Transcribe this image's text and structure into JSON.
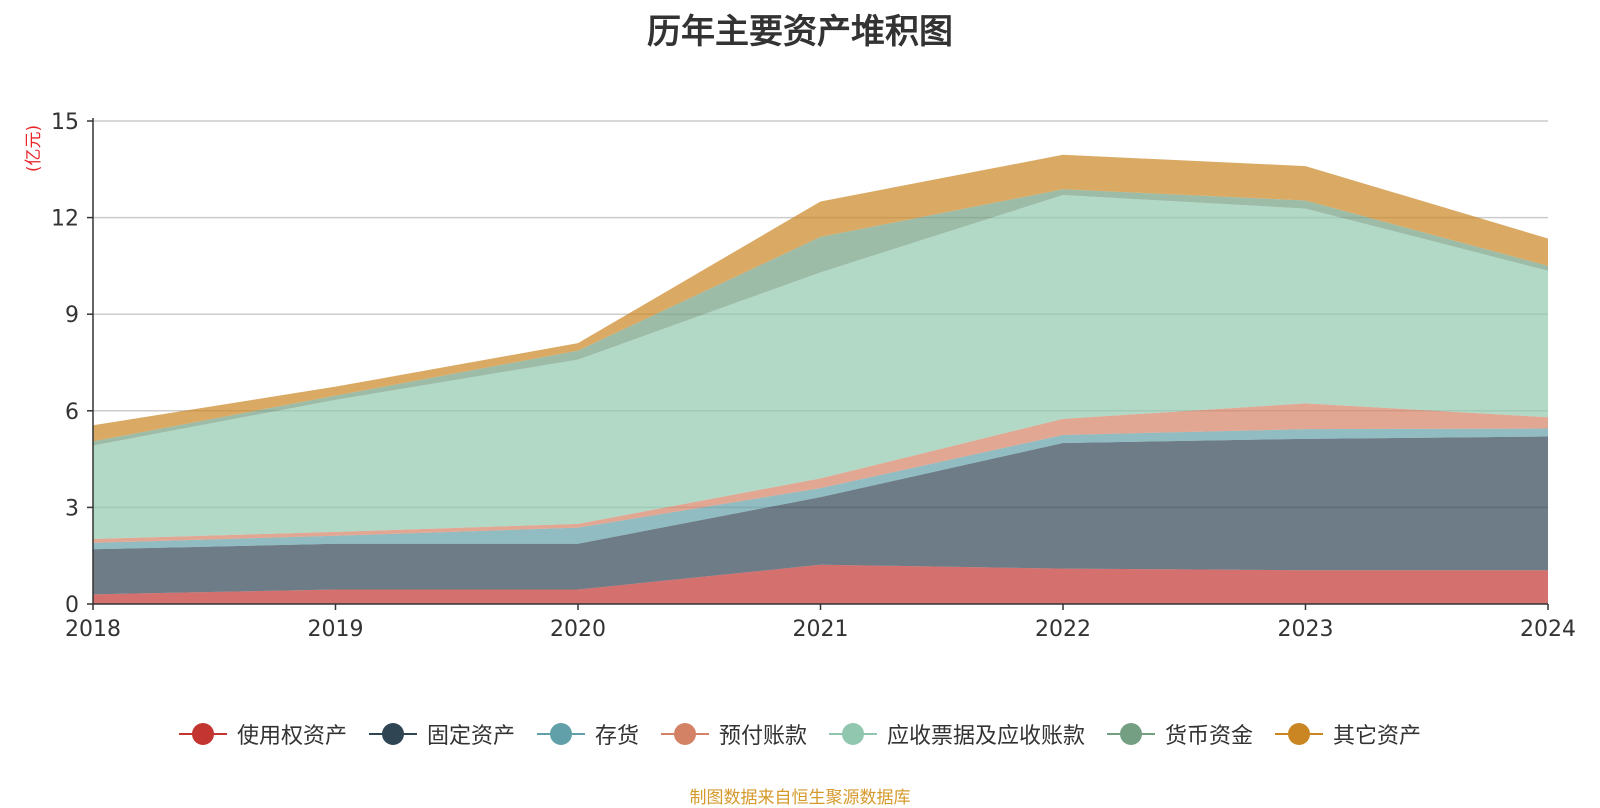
{
  "chart_data": {
    "type": "area",
    "title": "历年主要资产堆积图",
    "ylabel": "(亿元)",
    "xlabel": "",
    "x": [
      "2018",
      "2019",
      "2020",
      "2021",
      "2022",
      "2023",
      "2024"
    ],
    "ylim": [
      0,
      15
    ],
    "yticks": [
      0,
      3,
      6,
      9,
      12,
      15
    ],
    "stacked": true,
    "grid": true,
    "legend_position": "bottom",
    "series": [
      {
        "name": "使用权资产",
        "color": "#c23531",
        "values": [
          0.3,
          0.45,
          0.45,
          1.22,
          1.1,
          1.05,
          1.05
        ]
      },
      {
        "name": "固定资产",
        "color": "#2f4554",
        "values": [
          1.4,
          1.42,
          1.42,
          2.1,
          3.9,
          4.08,
          4.15
        ]
      },
      {
        "name": "存货",
        "color": "#61a0a8",
        "values": [
          0.2,
          0.25,
          0.5,
          0.28,
          0.25,
          0.3,
          0.25
        ]
      },
      {
        "name": "预付账款",
        "color": "#d48265",
        "values": [
          0.12,
          0.12,
          0.12,
          0.3,
          0.5,
          0.8,
          0.35
        ]
      },
      {
        "name": "应收票据及应收账款",
        "color": "#91c7ae",
        "values": [
          2.9,
          4.1,
          5.1,
          6.4,
          6.95,
          6.05,
          4.55
        ]
      },
      {
        "name": "货币资金",
        "color": "#749f83",
        "values": [
          0.13,
          0.13,
          0.28,
          1.1,
          0.18,
          0.25,
          0.15
        ]
      },
      {
        "name": "其它资产",
        "color": "#ca8622",
        "values": [
          0.5,
          0.28,
          0.23,
          1.1,
          1.07,
          1.07,
          0.85
        ]
      }
    ],
    "source": "制图数据来自恒生聚源数据库"
  }
}
